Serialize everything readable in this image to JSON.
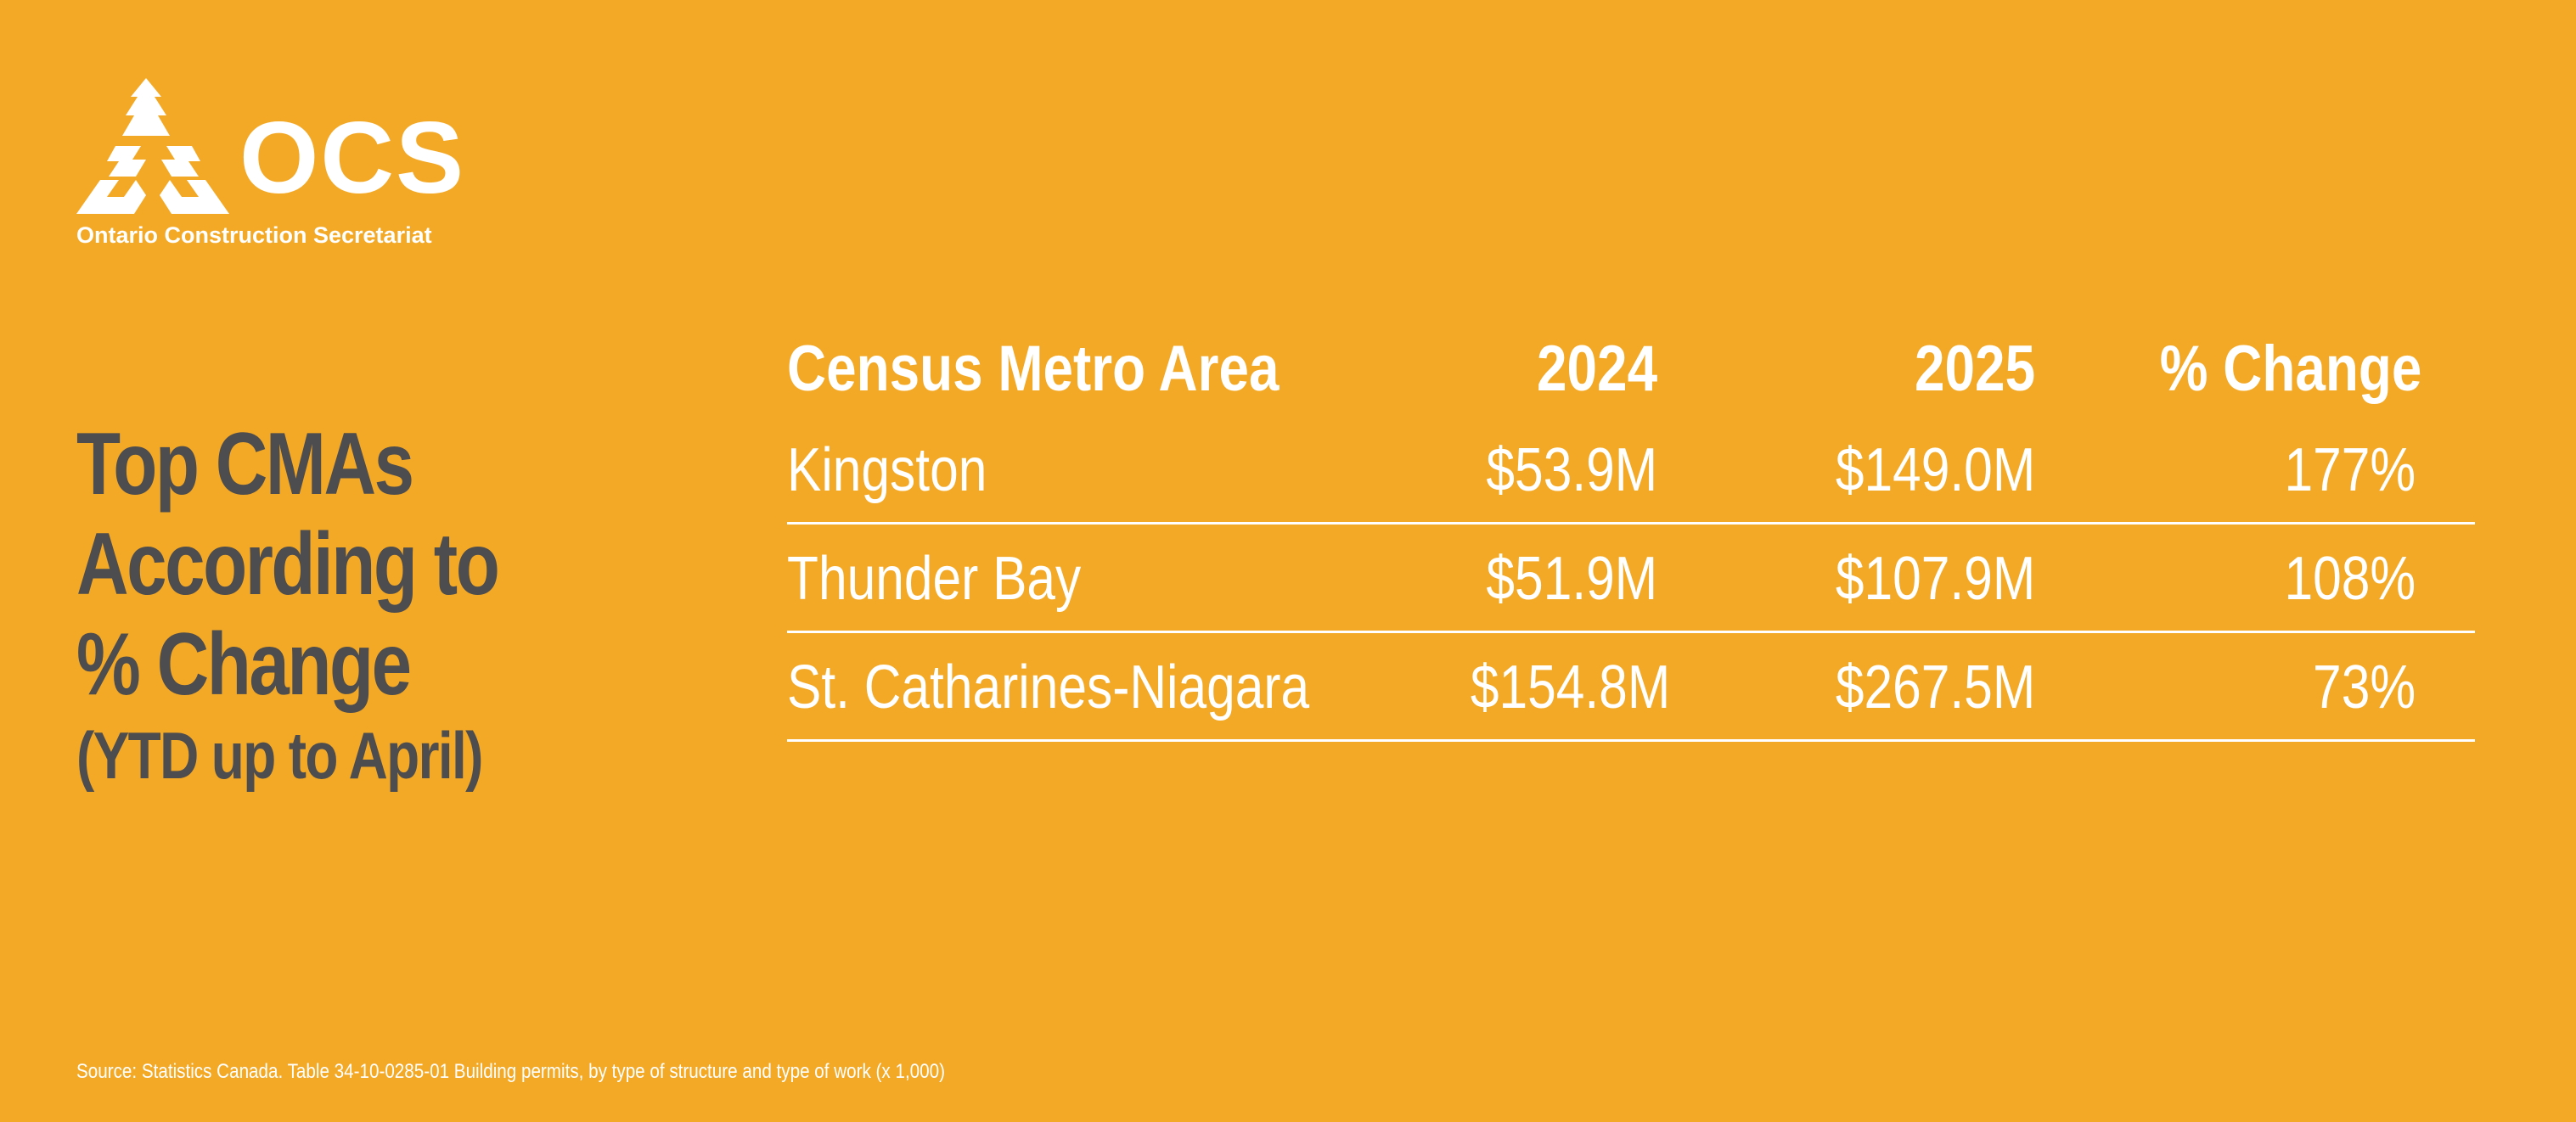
{
  "branding": {
    "logo_letters": "OCS",
    "tagline": "Ontario Construction Secretariat"
  },
  "headline": {
    "line1": "Top CMAs",
    "line2": "According to",
    "line3": "% Change",
    "subtitle": "(YTD up to April)"
  },
  "chart_data": {
    "type": "table",
    "columns": [
      "Census Metro Area",
      "2024",
      "2025",
      "% Change"
    ],
    "rows": [
      {
        "area": "Kingston",
        "y2024": "$53.9M",
        "y2025": "$149.0M",
        "change": "177%"
      },
      {
        "area": "Thunder Bay",
        "y2024": "$51.9M",
        "y2025": "$107.9M",
        "change": "108%"
      },
      {
        "area": "St. Catharines-Niagara",
        "y2024": "$154.8M",
        "y2025": "$267.5M",
        "change": "73%"
      }
    ]
  },
  "source": "Source: Statistics Canada. Table 34-10-0285-01  Building permits, by type of structure and type of work (x 1,000)",
  "colors": {
    "background": "#F4A926",
    "headline": "#4D4D4F",
    "text": "#FFFFFF"
  }
}
